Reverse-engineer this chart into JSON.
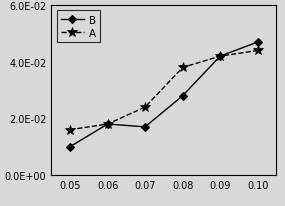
{
  "x": [
    0.05,
    0.06,
    0.07,
    0.08,
    0.09,
    0.1
  ],
  "B": [
    0.01,
    0.018,
    0.017,
    0.028,
    0.042,
    0.047
  ],
  "A": [
    0.016,
    0.018,
    0.024,
    0.038,
    0.042,
    0.044
  ],
  "B_label": "B",
  "A_label": "A",
  "ylim": [
    0.0,
    0.06
  ],
  "xlim": [
    0.045,
    0.105
  ],
  "yticks": [
    0.0,
    0.02,
    0.04,
    0.06
  ],
  "ytick_labels": [
    "0.0E+00",
    "2.0E-02",
    "4.0E-02",
    "6.0E-02"
  ],
  "xticks": [
    0.05,
    0.06,
    0.07,
    0.08,
    0.09,
    0.1
  ],
  "xtick_labels": [
    "0.05",
    "0.06",
    "0.07",
    "0.08",
    "0.09",
    "0.10"
  ],
  "background_color": "#d8d8d8",
  "axes_facecolor": "#d8d8d8",
  "line_color": "black",
  "marker_B": "D",
  "marker_A": "*",
  "fontsize_ticks": 7,
  "fontsize_legend": 7.5
}
